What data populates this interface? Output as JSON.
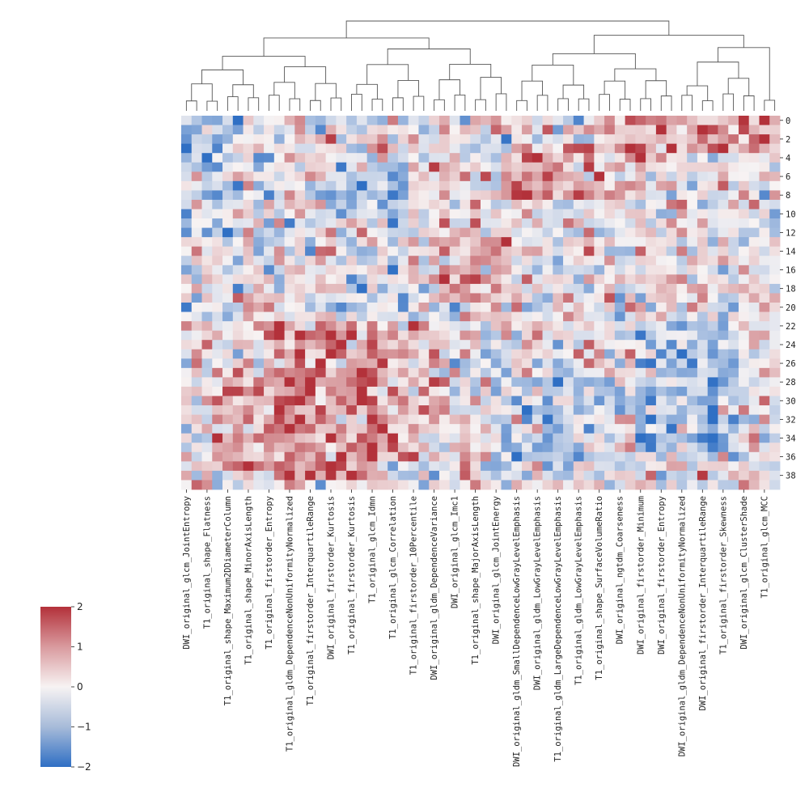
{
  "chart_data": {
    "type": "heatmap",
    "colormap": "vlag",
    "colors": {
      "low": "#2f6fc4",
      "mid": "#f7f3f3",
      "high": "#b3313a",
      "line": "#555555"
    },
    "vmin": -2,
    "vmax": 2,
    "colorbar_ticks": [
      "2",
      "1",
      "0",
      "−1",
      "−2"
    ],
    "colorbar_tick_values": [
      2,
      1,
      0,
      -1,
      -2
    ],
    "n_rows": 40,
    "n_cols": 58,
    "row_tick_labels": [
      "0",
      "2",
      "4",
      "6",
      "8",
      "10",
      "12",
      "14",
      "16",
      "18",
      "20",
      "22",
      "24",
      "26",
      "28",
      "30",
      "32",
      "34",
      "36",
      "38"
    ],
    "row_tick_rows": [
      0,
      2,
      4,
      6,
      8,
      10,
      12,
      14,
      16,
      18,
      20,
      22,
      24,
      26,
      28,
      30,
      32,
      34,
      36,
      38
    ],
    "col_labels": [
      "DWI_original_glcm_JointEntropy",
      "T1_original_shape_Flatness",
      "T1_original_shape_Maximum2DDiameterColumn",
      "T1_original_shape_MinorAxisLength",
      "T1_original_firstorder_Entropy",
      "T1_original_gldm_DependenceNonUniformityNormalized",
      "T1_original_firstorder_InterquartileRange",
      "DWI_original_firstorder_Kurtosis",
      "T1_original_firstorder_Kurtosis",
      "T1_original_glcm_Idmn",
      "T1_original_glcm_Correlation",
      "T1_original_firstorder_10Percentile",
      "DWI_original_gldm_DependenceVariance",
      "DWI_original_glcm_Imc1",
      "T1_original_shape_MajorAxisLength",
      "DWI_original_glcm_JointEnergy",
      "DWI_original_gldm_SmallDependenceLowGrayLevelEmphasis",
      "DWI_original_gldm_LowGrayLevelEmphasis",
      "T1_original_gldm_LargeDependenceLowGrayLevelEmphasis",
      "T1_original_gldm_LowGrayLevelEmphasis",
      "T1_original_shape_SurfaceVolumeRatio",
      "DWI_original_ngtdm_Coarseness",
      "DWI_original_firstorder_Minimum",
      "DWI_original_firstorder_Entropy",
      "DWI_original_gldm_DependenceNonUniformityNormalized",
      "DWI_original_firstorder_InterquartileRange",
      "T1_original_firstorder_Skewness",
      "DWI_original_glcm_ClusterShade",
      "T1_original_glcm_MCC"
    ],
    "col_label_cols": [
      0,
      2,
      4,
      6,
      8,
      10,
      12,
      14,
      16,
      18,
      20,
      22,
      24,
      26,
      28,
      30,
      32,
      34,
      36,
      38,
      40,
      42,
      44,
      46,
      48,
      50,
      52,
      54,
      56
    ],
    "dendrogram_description": "hierarchical clustering tree over the 58 columns; its shape is drawn by the rendering script"
  }
}
